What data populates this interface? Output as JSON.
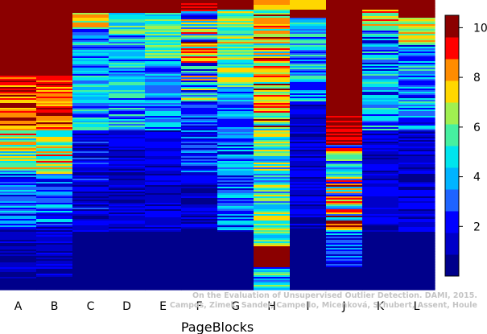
{
  "chart_data": {
    "type": "heatmap",
    "xlabel": "PageBlocks",
    "categories": [
      "A",
      "B",
      "C",
      "D",
      "E",
      "F",
      "G",
      "H",
      "I",
      "J",
      "K",
      "L"
    ],
    "colorbar": {
      "ticks": [
        2,
        4,
        6,
        8,
        10
      ],
      "range": [
        0,
        10.5
      ]
    },
    "colormap": [
      "#00008b",
      "#0000c8",
      "#0000ff",
      "#1e64ff",
      "#00b4ff",
      "#00e5ee",
      "#46f0a0",
      "#a0f050",
      "#ffd700",
      "#ff8c00",
      "#ff0000",
      "#8b0000"
    ],
    "grid": false
  },
  "watermark": {
    "line1": "On the Evaluation of Unsupervised Outlier Detection. DAMI, 2015.",
    "line2": "Campos, Zimek, Sander, Campello, Micenková, Schubert, Assent, Houle"
  }
}
